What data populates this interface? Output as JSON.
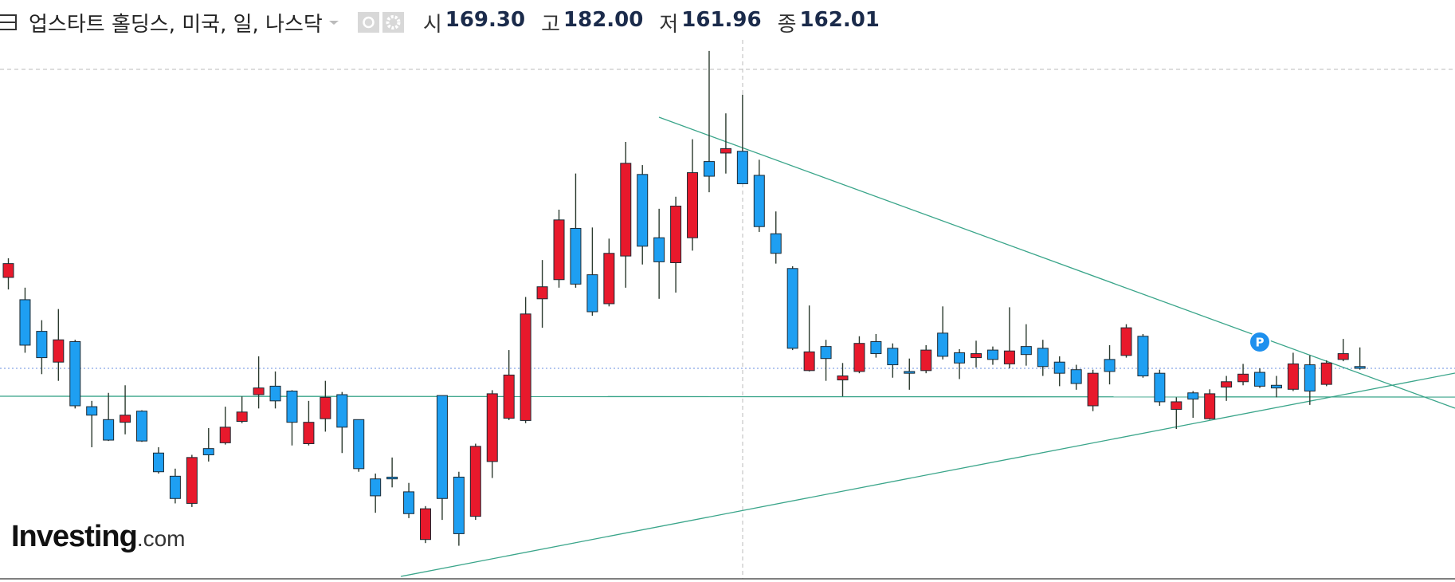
{
  "header": {
    "title": "업스타트 홀딩스, 미국, 일, 나스닥",
    "ohlc": [
      {
        "label": "시",
        "value": "169.30"
      },
      {
        "label": "고",
        "value": "182.00"
      },
      {
        "label": "저",
        "value": "161.96"
      },
      {
        "label": "종",
        "value": "162.01"
      }
    ]
  },
  "chart_data": {
    "type": "candlestick",
    "up_color": "#e8192c",
    "down_color": "#1e9ff2",
    "ylim": [
      74.1,
      194.9
    ],
    "annotation": "P",
    "open": [
      141.0,
      136.0,
      128.9,
      122.0,
      126.6,
      112.0,
      109.1,
      108.5,
      111.0,
      101.6,
      96.4,
      90.3,
      102.6,
      103.9,
      108.7,
      114.7,
      116.6,
      115.5,
      103.7,
      109.3,
      114.7,
      109.1,
      95.8,
      96.2,
      92.9,
      82.2,
      114.5,
      96.2,
      87.4,
      99.7,
      109.4,
      108.9,
      136.2,
      140.5,
      152.0,
      141.6,
      135.1,
      145.8,
      164.1,
      149.9,
      144.3,
      149.9,
      167.0,
      168.9,
      169.3,
      163.9,
      150.8,
      143.0,
      120.1,
      125.5,
      118.0,
      119.9,
      126.6,
      125.1,
      119.9,
      120.1,
      128.5,
      124.1,
      123.0,
      124.7,
      121.6,
      125.5,
      125.1,
      122.0,
      120.3,
      112.2,
      122.6,
      123.5,
      127.8,
      119.5,
      111.4,
      115.1,
      109.3,
      116.4,
      117.6,
      119.7,
      116.8,
      115.9,
      121.4,
      117.0,
      122.6,
      121.0
    ],
    "high": [
      145.3,
      138.7,
      131.4,
      133.9,
      127.0,
      113.3,
      115.1,
      116.8,
      111.2,
      102.9,
      98.1,
      101.2,
      107.2,
      112.0,
      114.3,
      123.3,
      119.9,
      115.7,
      113.3,
      117.8,
      115.3,
      109.1,
      97.0,
      100.6,
      94.9,
      89.7,
      114.5,
      97.4,
      103.7,
      115.7,
      124.7,
      136.6,
      144.9,
      156.2,
      164.3,
      152.2,
      149.7,
      171.4,
      166.2,
      156.4,
      159.1,
      172.0,
      191.8,
      177.8,
      182.0,
      167.4,
      155.8,
      143.5,
      134.7,
      127.0,
      121.8,
      127.8,
      128.3,
      126.2,
      122.8,
      125.8,
      134.5,
      124.9,
      126.8,
      125.5,
      134.3,
      130.5,
      127.0,
      123.3,
      121.4,
      120.3,
      125.8,
      130.5,
      128.3,
      120.3,
      114.1,
      115.5,
      115.9,
      118.9,
      121.6,
      120.6,
      118.9,
      124.1,
      123.5,
      122.4,
      127.2,
      125.3
    ],
    "low": [
      138.3,
      124.1,
      119.3,
      117.8,
      111.6,
      102.9,
      104.3,
      105.8,
      104.1,
      97.0,
      90.3,
      89.5,
      99.7,
      103.5,
      108.3,
      111.6,
      111.6,
      103.3,
      103.3,
      106.4,
      101.6,
      97.4,
      88.2,
      93.9,
      87.0,
      81.4,
      86.6,
      80.8,
      86.6,
      96.0,
      109.0,
      108.3,
      129.7,
      138.7,
      138.7,
      132.4,
      134.5,
      138.7,
      143.9,
      136.2,
      137.6,
      147.0,
      160.1,
      164.3,
      161.96,
      151.2,
      144.1,
      124.7,
      119.9,
      117.8,
      114.3,
      119.5,
      123.0,
      118.5,
      115.8,
      119.5,
      122.6,
      118.2,
      120.8,
      121.4,
      120.6,
      121.2,
      118.9,
      116.6,
      115.8,
      111.0,
      117.0,
      123.0,
      118.5,
      112.2,
      107.0,
      109.5,
      109.1,
      113.3,
      116.8,
      116.2,
      114.1,
      115.5,
      112.4,
      116.6,
      122.2,
      120.3
    ],
    "close": [
      144.1,
      125.8,
      123.0,
      127.0,
      112.2,
      110.1,
      104.5,
      110.1,
      104.3,
      97.4,
      91.4,
      100.6,
      101.2,
      107.4,
      110.8,
      116.2,
      113.3,
      108.5,
      108.5,
      114.1,
      107.4,
      98.1,
      92.0,
      95.8,
      88.0,
      89.1,
      91.4,
      83.5,
      103.1,
      114.9,
      119.1,
      132.8,
      138.9,
      153.9,
      139.5,
      133.3,
      146.4,
      166.6,
      148.0,
      144.5,
      157.0,
      164.5,
      163.7,
      169.9,
      162.01,
      152.4,
      146.4,
      125.1,
      124.3,
      122.8,
      118.9,
      126.2,
      123.9,
      121.4,
      119.5,
      124.7,
      123.3,
      121.8,
      123.9,
      122.6,
      124.5,
      123.7,
      121.0,
      119.5,
      117.2,
      119.5,
      119.9,
      129.7,
      118.9,
      113.1,
      113.1,
      113.7,
      114.9,
      117.6,
      119.3,
      116.6,
      116.2,
      121.6,
      115.5,
      121.8,
      123.9,
      120.6
    ]
  },
  "logo": {
    "brand": "Investing",
    "suffix": ".com"
  }
}
